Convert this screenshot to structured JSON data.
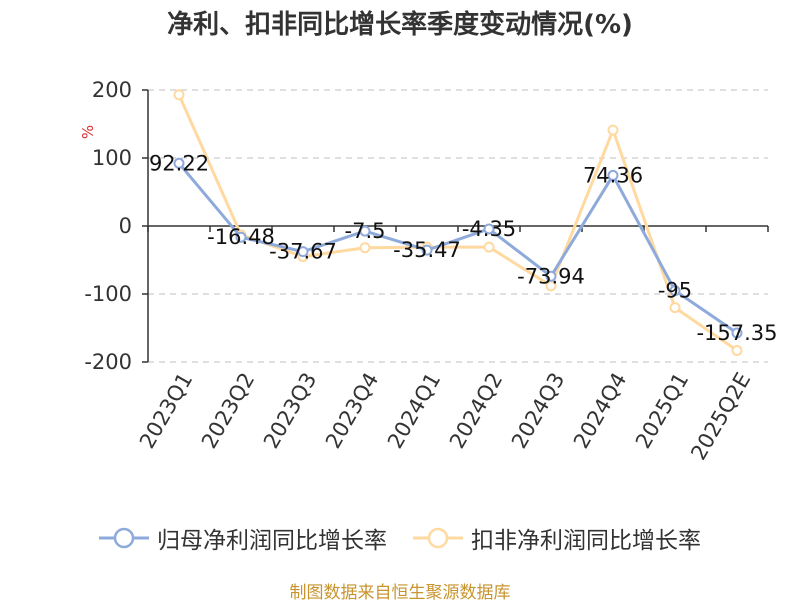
{
  "title": "净利、扣非同比增长率季度变动情况(%)",
  "source_note": "制图数据来自恒生聚源数据库",
  "colors": {
    "series1": "#8eaadb",
    "series2": "#ffd9a0",
    "grid": "#cccccc",
    "axis": "#333333",
    "unit_text": "#e03030",
    "source_text": "#c8942e"
  },
  "chart_data": {
    "type": "line",
    "title": "净利、扣非同比增长率季度变动情况(%)",
    "xlabel": "",
    "ylabel": "%",
    "ylim": [
      -200,
      200
    ],
    "yticks": [
      200,
      100,
      0,
      -100,
      -200
    ],
    "grid": "horizontal dashed",
    "legend_position": "bottom",
    "categories": [
      "2023Q1",
      "2023Q2",
      "2023Q3",
      "2023Q4",
      "2024Q1",
      "2024Q2",
      "2024Q3",
      "2024Q4",
      "2025Q1",
      "2025Q2E"
    ],
    "series": [
      {
        "name": "归母净利润同比增长率",
        "values": [
          92.22,
          -16.48,
          -37.67,
          -7.5,
          -35.47,
          -4.35,
          -73.94,
          74.36,
          -95,
          -157.35
        ],
        "labels": [
          "92.22",
          "-16.48",
          "-37.67",
          "-7.5",
          "-35.47",
          "-4.35",
          "-73.94",
          "74.36",
          "-95",
          "-157.35"
        ]
      },
      {
        "name": "扣非净利润同比增长率",
        "values": [
          193,
          -13,
          -45,
          -32,
          -31,
          -31,
          -88,
          141,
          -120,
          -183
        ]
      }
    ]
  }
}
